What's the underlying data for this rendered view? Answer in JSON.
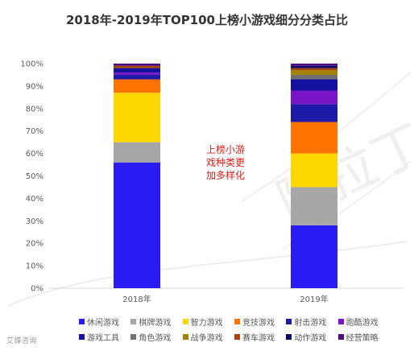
{
  "chart_data": {
    "type": "bar",
    "stacked": true,
    "title": "2018年-2019年TOP100上榜小游戏细分分类占比",
    "categories": [
      "2018年",
      "2019年"
    ],
    "ylim": [
      0,
      100
    ],
    "yticks": [
      "0%",
      "10%",
      "20%",
      "30%",
      "40%",
      "50%",
      "60%",
      "70%",
      "80%",
      "90%",
      "100%"
    ],
    "grid": false,
    "legend_position": "bottom",
    "series": [
      {
        "name": "休闲游戏",
        "color": "#2b1bf5",
        "values": [
          56,
          28
        ]
      },
      {
        "name": "棋牌游戏",
        "color": "#a6a6a6",
        "values": [
          9,
          17
        ]
      },
      {
        "name": "智力游戏",
        "color": "#ffd700",
        "values": [
          22,
          15
        ]
      },
      {
        "name": "竞技游戏",
        "color": "#ff7300",
        "values": [
          6,
          14
        ]
      },
      {
        "name": "射击游戏",
        "color": "#1c1aa6",
        "values": [
          2,
          8
        ]
      },
      {
        "name": "跑酷游戏",
        "color": "#7a14c8",
        "values": [
          1,
          6
        ]
      },
      {
        "name": "游戏工具",
        "color": "#1511a0",
        "values": [
          2,
          5
        ]
      },
      {
        "name": "角色游戏",
        "color": "#707070",
        "values": [
          0,
          2
        ]
      },
      {
        "name": "战争游戏",
        "color": "#a08300",
        "values": [
          0,
          2
        ]
      },
      {
        "name": "赛车游戏",
        "color": "#a84400",
        "values": [
          1,
          1
        ]
      },
      {
        "name": "动作游戏",
        "color": "#0d0b66",
        "values": [
          0,
          1
        ]
      },
      {
        "name": "经营策略",
        "color": "#4d0d80",
        "values": [
          1,
          1
        ]
      }
    ],
    "annotations": [
      "上榜小游",
      "戏种类更",
      "加多样化"
    ]
  },
  "watermark": "艾媒咨询",
  "stamp_text": "阿拉丁"
}
